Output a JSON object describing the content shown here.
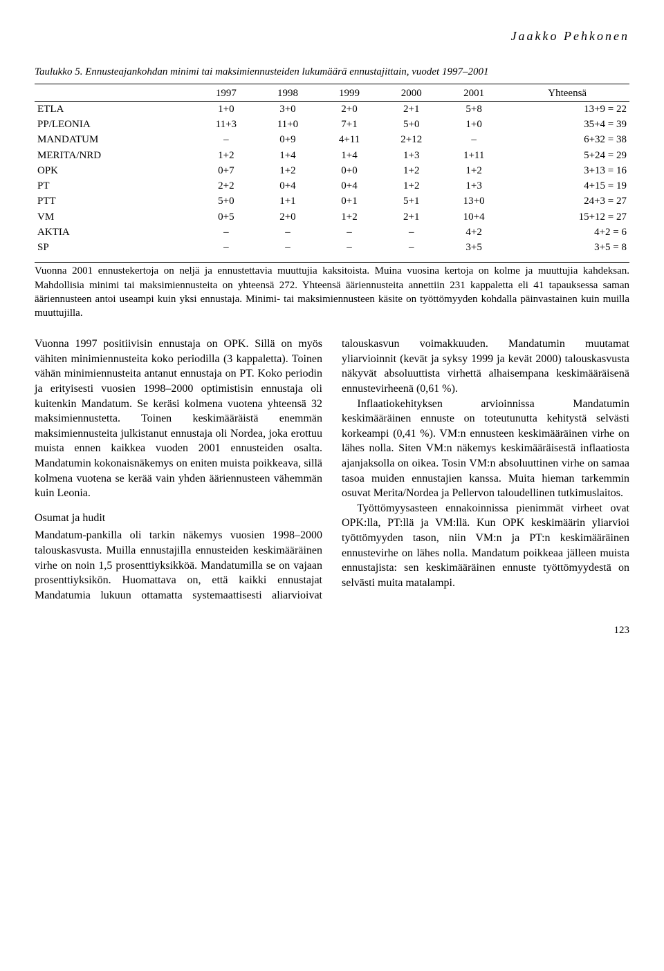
{
  "author": "Jaakko Pehkonen",
  "table": {
    "title": "Taulukko 5. Ennusteajankohdan minimi tai maksimiennusteiden lukumäärä ennustajittain, vuodet 1997–2001",
    "columns": [
      "",
      "1997",
      "1998",
      "1999",
      "2000",
      "2001",
      "Yhteensä"
    ],
    "rows": [
      [
        "ETLA",
        "1+0",
        "3+0",
        "2+0",
        "2+1",
        "5+8",
        "13+9 = 22"
      ],
      [
        "PP/LEONIA",
        "11+3",
        "11+0",
        "7+1",
        "5+0",
        "1+0",
        "35+4 = 39"
      ],
      [
        "MANDATUM",
        "–",
        "0+9",
        "4+11",
        "2+12",
        "–",
        "6+32 = 38"
      ],
      [
        "MERITA/NRD",
        "1+2",
        "1+4",
        "1+4",
        "1+3",
        "1+11",
        "5+24 = 29"
      ],
      [
        "OPK",
        "0+7",
        "1+2",
        "0+0",
        "1+2",
        "1+2",
        "3+13 = 16"
      ],
      [
        "PT",
        "2+2",
        "0+4",
        "0+4",
        "1+2",
        "1+3",
        "4+15 = 19"
      ],
      [
        "PTT",
        "5+0",
        "1+1",
        "0+1",
        "5+1",
        "13+0",
        "24+3 = 27"
      ],
      [
        "VM",
        "0+5",
        "2+0",
        "1+2",
        "2+1",
        "10+4",
        "15+12 = 27"
      ],
      [
        "AKTIA",
        "–",
        "–",
        "–",
        "–",
        "4+2",
        "4+2 = 6"
      ],
      [
        "SP",
        "–",
        "–",
        "–",
        "–",
        "3+5",
        "3+5 = 8"
      ]
    ],
    "note": "Vuonna 2001 ennustekertoja on neljä ja ennustettavia muuttujia kaksitoista. Muina vuosina kertoja on kolme ja muuttujia kahdeksan. Mahdollisia minimi tai maksimiennusteita on yhteensä 272. Yhteensä ääriennusteita annettiin 231 kappaletta eli 41 tapauksessa saman ääriennusteen antoi useampi kuin yksi ennustaja. Minimi- tai maksimiennusteen käsite on työttömyyden kohdalla päinvastainen kuin muilla muuttujilla."
  },
  "body": {
    "p1": "Vuonna 1997 positiivisin ennustaja on OPK. Sillä on myös vähiten minimiennusteita koko periodilla (3 kappaletta). Toinen vähän minimiennusteita antanut ennustaja on PT. Koko periodin ja erityisesti vuosien 1998–2000 optimistisin ennustaja oli kuitenkin Mandatum. Se keräsi kolmena vuotena yhteensä 32 maksimiennustetta. Toinen keskimääräistä enemmän maksimiennusteita julkistanut ennustaja oli Nordea, joka erottuu muista ennen kaikkea vuoden 2001 ennusteiden osalta. Mandatumin kokonaisnäkemys on eniten muista poikkeava, sillä kolmena vuotena se kerää vain yhden ääriennusteen vähemmän kuin Leonia.",
    "h1": "Osumat ja hudit",
    "p2": "Mandatum-pankilla oli tarkin näkemys vuosien 1998–2000 talouskasvusta. Muilla ennustajilla ennusteiden keskimääräinen virhe on noin 1,5 prosenttiyksikköä. Mandatumilla se on vajaan prosenttiyksikön. Huomattava on, että kaikki ennustajat Mandatumia lukuun ottamatta systemaattisesti aliarvioivat talouskasvun voimakkuuden. Mandatumin muutamat yliarvioinnit (kevät ja syksy 1999 ja kevät 2000) talouskasvusta näkyvät absoluuttista virhettä alhaisempana keskimääräisenä ennustevirheenä (0,61 %).",
    "p3": "Inflaatiokehityksen arvioinnissa Mandatumin keskimääräinen ennuste on toteutunutta kehitystä selvästi korkeampi (0,41 %). VM:n ennusteen keskimääräinen virhe on lähes nolla. Siten VM:n näkemys keskimääräisestä inflaatiosta ajanjaksolla on oikea. Tosin VM:n absoluuttinen virhe on samaa tasoa muiden ennustajien kanssa. Muita hieman tarkemmin osuvat Merita/Nordea ja Pellervon taloudellinen tutkimuslaitos.",
    "p4": "Työttömyysasteen ennakoinnissa pienimmät virheet ovat OPK:lla, PT:llä ja VM:llä. Kun OPK keskimäärin yliarvioi työttömyyden tason, niin VM:n ja PT:n keskimääräinen ennustevirhe on lähes nolla. Mandatum poikkeaa jälleen muista ennustajista: sen keskimääräinen ennuste työttömyydestä on selvästi muita matalampi."
  },
  "page": "123"
}
